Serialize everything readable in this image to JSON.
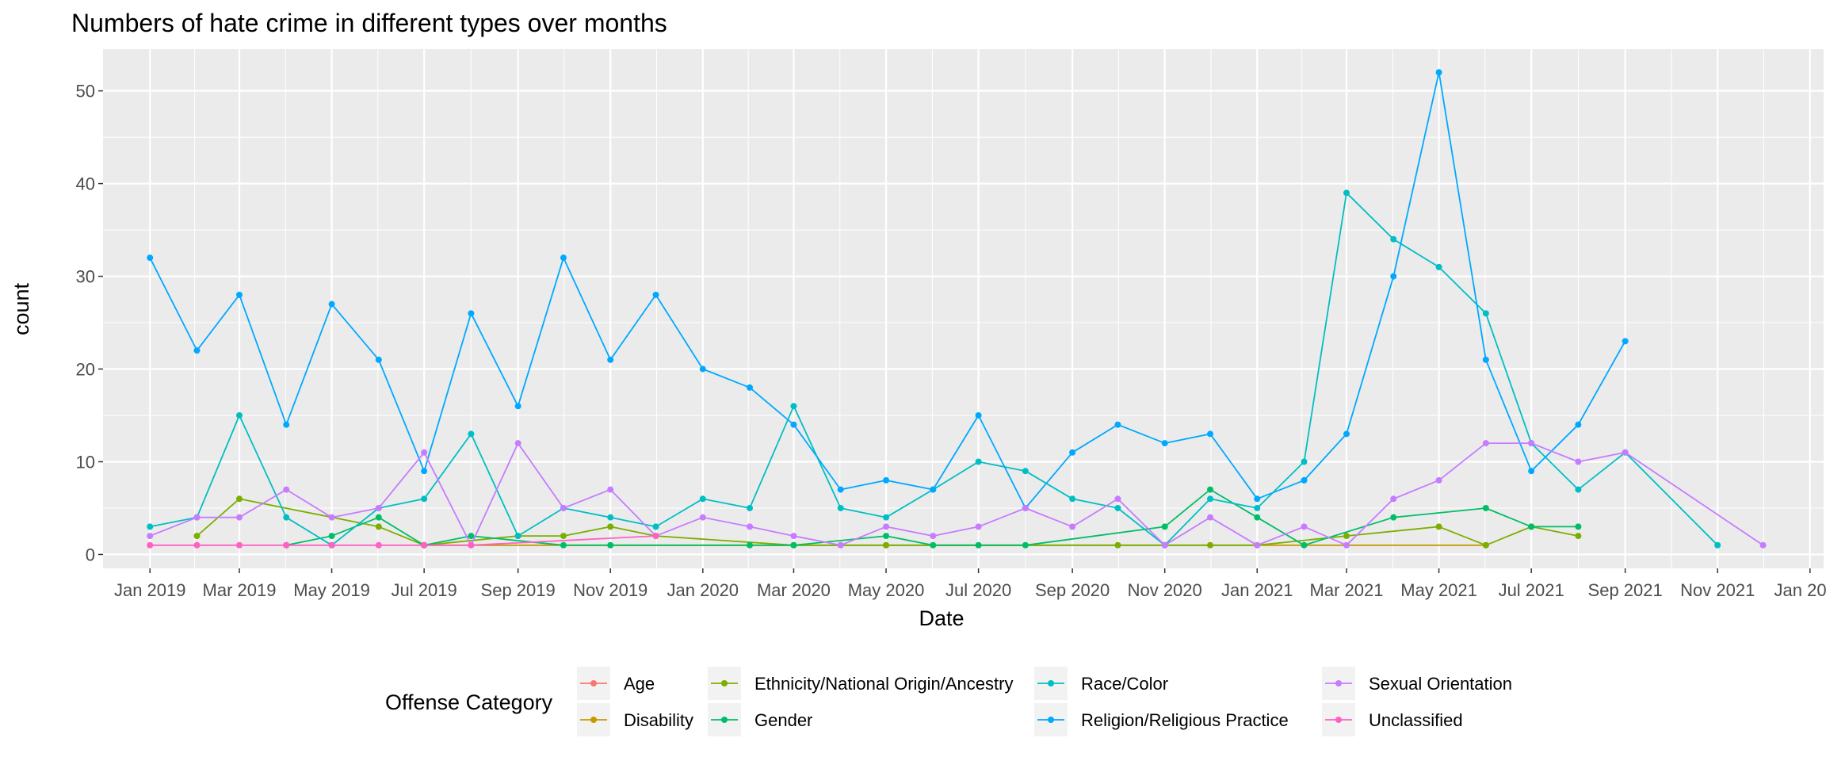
{
  "chart_data": {
    "type": "line",
    "title": "Numbers of hate crime in different types over months",
    "xlabel": "Date",
    "ylabel": "count",
    "x_range": [
      "2018-12-01",
      "2022-01-10"
    ],
    "ylim": [
      -1.5,
      54.5
    ],
    "y_ticks": [
      0,
      10,
      20,
      30,
      40,
      50
    ],
    "x_ticks": [
      {
        "date": "2019-01-01",
        "label": "Jan 2019"
      },
      {
        "date": "2019-03-01",
        "label": "Mar 2019"
      },
      {
        "date": "2019-05-01",
        "label": "May 2019"
      },
      {
        "date": "2019-07-01",
        "label": "Jul 2019"
      },
      {
        "date": "2019-09-01",
        "label": "Sep 2019"
      },
      {
        "date": "2019-11-01",
        "label": "Nov 2019"
      },
      {
        "date": "2020-01-01",
        "label": "Jan 2020"
      },
      {
        "date": "2020-03-01",
        "label": "Mar 2020"
      },
      {
        "date": "2020-05-01",
        "label": "May 2020"
      },
      {
        "date": "2020-07-01",
        "label": "Jul 2020"
      },
      {
        "date": "2020-09-01",
        "label": "Sep 2020"
      },
      {
        "date": "2020-11-01",
        "label": "Nov 2020"
      },
      {
        "date": "2021-01-01",
        "label": "Jan 2021"
      },
      {
        "date": "2021-03-01",
        "label": "Mar 2021"
      },
      {
        "date": "2021-05-01",
        "label": "May 2021"
      },
      {
        "date": "2021-07-01",
        "label": "Jul 2021"
      },
      {
        "date": "2021-09-01",
        "label": "Sep 2021"
      },
      {
        "date": "2021-11-01",
        "label": "Nov 2021"
      },
      {
        "date": "2022-01-01",
        "label": "Jan 2022"
      }
    ],
    "grid": true,
    "panel_color": "#ebebeb",
    "legend": {
      "title": "Offense Category",
      "position": "bottom"
    },
    "series": [
      {
        "name": "Age",
        "color": "#F8766D",
        "points": [
          [
            "2019-07-01",
            1
          ]
        ]
      },
      {
        "name": "Disability",
        "color": "#C49A00",
        "points": [
          [
            "2019-07-01",
            1
          ],
          [
            "2020-04-01",
            1
          ],
          [
            "2020-05-01",
            1
          ],
          [
            "2021-06-01",
            1
          ]
        ]
      },
      {
        "name": "Ethnicity/National Origin/Ancestry",
        "color": "#7CAE00",
        "points": [
          [
            "2019-02-01",
            2
          ],
          [
            "2019-03-01",
            6
          ],
          [
            "2019-06-01",
            3
          ],
          [
            "2019-07-01",
            1
          ],
          [
            "2019-09-01",
            2
          ],
          [
            "2019-10-01",
            2
          ],
          [
            "2019-11-01",
            3
          ],
          [
            "2019-12-01",
            2
          ],
          [
            "2020-03-01",
            1
          ],
          [
            "2020-05-01",
            1
          ],
          [
            "2020-10-01",
            1
          ],
          [
            "2020-11-01",
            1
          ],
          [
            "2020-12-01",
            1
          ],
          [
            "2021-01-01",
            1
          ],
          [
            "2021-03-01",
            2
          ],
          [
            "2021-05-01",
            3
          ],
          [
            "2021-06-01",
            1
          ],
          [
            "2021-07-01",
            3
          ],
          [
            "2021-08-01",
            2
          ]
        ]
      },
      {
        "name": "Gender",
        "color": "#00BE67",
        "points": [
          [
            "2019-04-01",
            1
          ],
          [
            "2019-05-01",
            2
          ],
          [
            "2019-06-01",
            4
          ],
          [
            "2019-07-01",
            1
          ],
          [
            "2019-08-01",
            2
          ],
          [
            "2019-10-01",
            1
          ],
          [
            "2019-11-01",
            1
          ],
          [
            "2020-02-01",
            1
          ],
          [
            "2020-03-01",
            1
          ],
          [
            "2020-05-01",
            2
          ],
          [
            "2020-06-01",
            1
          ],
          [
            "2020-07-01",
            1
          ],
          [
            "2020-08-01",
            1
          ],
          [
            "2020-11-01",
            3
          ],
          [
            "2020-12-01",
            7
          ],
          [
            "2021-01-01",
            4
          ],
          [
            "2021-02-01",
            1
          ],
          [
            "2021-04-01",
            4
          ],
          [
            "2021-06-01",
            5
          ],
          [
            "2021-07-01",
            3
          ],
          [
            "2021-08-01",
            3
          ]
        ]
      },
      {
        "name": "Race/Color",
        "color": "#00BFC4",
        "points": [
          [
            "2019-01-01",
            3
          ],
          [
            "2019-02-01",
            4
          ],
          [
            "2019-03-01",
            15
          ],
          [
            "2019-04-01",
            4
          ],
          [
            "2019-05-01",
            1
          ],
          [
            "2019-06-01",
            5
          ],
          [
            "2019-07-01",
            6
          ],
          [
            "2019-08-01",
            13
          ],
          [
            "2019-09-01",
            2
          ],
          [
            "2019-10-01",
            5
          ],
          [
            "2019-11-01",
            4
          ],
          [
            "2019-12-01",
            3
          ],
          [
            "2020-01-01",
            6
          ],
          [
            "2020-02-01",
            5
          ],
          [
            "2020-03-01",
            16
          ],
          [
            "2020-04-01",
            5
          ],
          [
            "2020-05-01",
            4
          ],
          [
            "2020-06-01",
            7
          ],
          [
            "2020-07-01",
            10
          ],
          [
            "2020-08-01",
            9
          ],
          [
            "2020-09-01",
            6
          ],
          [
            "2020-10-01",
            5
          ],
          [
            "2020-11-01",
            1
          ],
          [
            "2020-12-01",
            6
          ],
          [
            "2021-01-01",
            5
          ],
          [
            "2021-02-01",
            10
          ],
          [
            "2021-03-01",
            39
          ],
          [
            "2021-04-01",
            34
          ],
          [
            "2021-05-01",
            31
          ],
          [
            "2021-06-01",
            26
          ],
          [
            "2021-07-01",
            12
          ],
          [
            "2021-08-01",
            7
          ],
          [
            "2021-09-01",
            11
          ],
          [
            "2021-11-01",
            1
          ]
        ]
      },
      {
        "name": "Religion/Religious Practice",
        "color": "#00A9FF",
        "points": [
          [
            "2019-01-01",
            32
          ],
          [
            "2019-02-01",
            22
          ],
          [
            "2019-03-01",
            28
          ],
          [
            "2019-04-01",
            14
          ],
          [
            "2019-05-01",
            27
          ],
          [
            "2019-06-01",
            21
          ],
          [
            "2019-07-01",
            9
          ],
          [
            "2019-08-01",
            26
          ],
          [
            "2019-09-01",
            16
          ],
          [
            "2019-10-01",
            32
          ],
          [
            "2019-11-01",
            21
          ],
          [
            "2019-12-01",
            28
          ],
          [
            "2020-01-01",
            20
          ],
          [
            "2020-02-01",
            18
          ],
          [
            "2020-03-01",
            14
          ],
          [
            "2020-04-01",
            7
          ],
          [
            "2020-05-01",
            8
          ],
          [
            "2020-06-01",
            7
          ],
          [
            "2020-07-01",
            15
          ],
          [
            "2020-08-01",
            5
          ],
          [
            "2020-09-01",
            11
          ],
          [
            "2020-10-01",
            14
          ],
          [
            "2020-11-01",
            12
          ],
          [
            "2020-12-01",
            13
          ],
          [
            "2021-01-01",
            6
          ],
          [
            "2021-02-01",
            8
          ],
          [
            "2021-03-01",
            13
          ],
          [
            "2021-04-01",
            30
          ],
          [
            "2021-05-01",
            52
          ],
          [
            "2021-06-01",
            21
          ],
          [
            "2021-07-01",
            9
          ],
          [
            "2021-08-01",
            14
          ],
          [
            "2021-09-01",
            23
          ]
        ]
      },
      {
        "name": "Sexual Orientation",
        "color": "#C77CFF",
        "points": [
          [
            "2019-01-01",
            2
          ],
          [
            "2019-02-01",
            4
          ],
          [
            "2019-03-01",
            4
          ],
          [
            "2019-04-01",
            7
          ],
          [
            "2019-05-01",
            4
          ],
          [
            "2019-06-01",
            5
          ],
          [
            "2019-07-01",
            11
          ],
          [
            "2019-08-01",
            1
          ],
          [
            "2019-09-01",
            12
          ],
          [
            "2019-10-01",
            5
          ],
          [
            "2019-11-01",
            7
          ],
          [
            "2019-12-01",
            2
          ],
          [
            "2020-01-01",
            4
          ],
          [
            "2020-02-01",
            3
          ],
          [
            "2020-03-01",
            2
          ],
          [
            "2020-04-01",
            1
          ],
          [
            "2020-05-01",
            3
          ],
          [
            "2020-06-01",
            2
          ],
          [
            "2020-07-01",
            3
          ],
          [
            "2020-08-01",
            5
          ],
          [
            "2020-09-01",
            3
          ],
          [
            "2020-10-01",
            6
          ],
          [
            "2020-11-01",
            1
          ],
          [
            "2020-12-01",
            4
          ],
          [
            "2021-01-01",
            1
          ],
          [
            "2021-02-01",
            3
          ],
          [
            "2021-03-01",
            1
          ],
          [
            "2021-04-01",
            6
          ],
          [
            "2021-05-01",
            8
          ],
          [
            "2021-06-01",
            12
          ],
          [
            "2021-07-01",
            12
          ],
          [
            "2021-08-01",
            10
          ],
          [
            "2021-09-01",
            11
          ],
          [
            "2021-12-01",
            1
          ]
        ]
      },
      {
        "name": "Unclassified",
        "color": "#FF61C3",
        "points": [
          [
            "2019-01-01",
            1
          ],
          [
            "2019-02-01",
            1
          ],
          [
            "2019-03-01",
            1
          ],
          [
            "2019-04-01",
            1
          ],
          [
            "2019-05-01",
            1
          ],
          [
            "2019-06-01",
            1
          ],
          [
            "2019-07-01",
            1
          ],
          [
            "2019-08-01",
            1
          ],
          [
            "2019-12-01",
            2
          ]
        ]
      }
    ]
  }
}
